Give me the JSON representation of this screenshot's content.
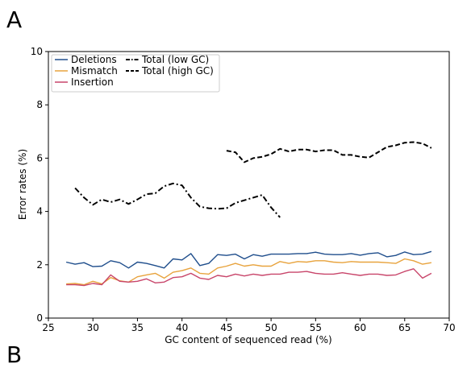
{
  "panel": {
    "label": "A",
    "next_label": "B"
  },
  "chart_data": {
    "type": "line",
    "title": "",
    "xlabel": "GC content of sequenced read (%)",
    "ylabel": "Error rates (%)",
    "xlim": [
      25,
      70
    ],
    "ylim": [
      0,
      10
    ],
    "xticks": [
      25,
      30,
      35,
      40,
      45,
      50,
      55,
      60,
      65,
      70
    ],
    "yticks": [
      0,
      2,
      4,
      6,
      8,
      10
    ],
    "grid": false,
    "legend_position": "top-left",
    "series": [
      {
        "name": "Deletions",
        "color": "#1f4e8c",
        "style": "solid",
        "x": [
          27,
          28,
          29,
          30,
          31,
          32,
          33,
          34,
          35,
          36,
          37,
          38,
          39,
          40,
          41,
          42,
          43,
          44,
          45,
          46,
          47,
          48,
          49,
          50,
          51,
          52,
          53,
          54,
          55,
          56,
          57,
          58,
          59,
          60,
          61,
          62,
          63,
          64,
          65,
          66,
          67,
          68
        ],
        "y": [
          2.1,
          2.02,
          2.08,
          1.93,
          1.95,
          2.15,
          2.08,
          1.88,
          2.1,
          2.05,
          1.97,
          1.88,
          2.22,
          2.18,
          2.42,
          1.97,
          2.05,
          2.38,
          2.35,
          2.4,
          2.22,
          2.38,
          2.32,
          2.4,
          2.4,
          2.4,
          2.42,
          2.42,
          2.47,
          2.4,
          2.38,
          2.38,
          2.42,
          2.36,
          2.42,
          2.45,
          2.3,
          2.35,
          2.48,
          2.38,
          2.4,
          2.5
        ]
      },
      {
        "name": "Mismatch",
        "color": "#e8a33d",
        "style": "solid",
        "x": [
          27,
          28,
          29,
          30,
          31,
          32,
          33,
          34,
          35,
          36,
          37,
          38,
          39,
          40,
          41,
          42,
          43,
          44,
          45,
          46,
          47,
          48,
          49,
          50,
          51,
          52,
          53,
          54,
          55,
          56,
          57,
          58,
          59,
          60,
          61,
          62,
          63,
          64,
          65,
          66,
          67,
          68
        ],
        "y": [
          1.28,
          1.3,
          1.25,
          1.38,
          1.28,
          1.52,
          1.4,
          1.35,
          1.55,
          1.62,
          1.68,
          1.5,
          1.72,
          1.78,
          1.88,
          1.68,
          1.65,
          1.88,
          1.95,
          2.05,
          1.95,
          2.0,
          1.95,
          1.95,
          2.12,
          2.05,
          2.12,
          2.1,
          2.15,
          2.15,
          2.1,
          2.08,
          2.12,
          2.1,
          2.1,
          2.1,
          2.08,
          2.05,
          2.22,
          2.15,
          2.02,
          2.08
        ]
      },
      {
        "name": "Insertion",
        "color": "#c8456a",
        "style": "solid",
        "x": [
          27,
          28,
          29,
          30,
          31,
          32,
          33,
          34,
          35,
          36,
          37,
          38,
          39,
          40,
          41,
          42,
          43,
          44,
          45,
          46,
          47,
          48,
          49,
          50,
          51,
          52,
          53,
          54,
          55,
          56,
          57,
          58,
          59,
          60,
          61,
          62,
          63,
          64,
          65,
          66,
          67,
          68
        ],
        "y": [
          1.25,
          1.25,
          1.22,
          1.3,
          1.25,
          1.62,
          1.38,
          1.35,
          1.38,
          1.47,
          1.32,
          1.35,
          1.52,
          1.55,
          1.68,
          1.5,
          1.45,
          1.6,
          1.55,
          1.65,
          1.58,
          1.65,
          1.6,
          1.65,
          1.65,
          1.72,
          1.72,
          1.75,
          1.68,
          1.65,
          1.65,
          1.7,
          1.65,
          1.6,
          1.65,
          1.65,
          1.6,
          1.62,
          1.75,
          1.85,
          1.5,
          1.68
        ]
      },
      {
        "name": "Total (low GC)",
        "color": "#000000",
        "style": "dashdot",
        "x": [
          28,
          29,
          30,
          31,
          32,
          33,
          34,
          35,
          36,
          37,
          38,
          39,
          40,
          41,
          42,
          43,
          44,
          45,
          46,
          47,
          48,
          49,
          50,
          51
        ],
        "y": [
          4.88,
          4.52,
          4.25,
          4.45,
          4.35,
          4.45,
          4.28,
          4.45,
          4.65,
          4.68,
          4.95,
          5.05,
          4.98,
          4.52,
          4.18,
          4.12,
          4.1,
          4.12,
          4.32,
          4.42,
          4.52,
          4.62,
          4.15,
          3.78
        ]
      },
      {
        "name": "Total (high GC)",
        "color": "#000000",
        "style": "dashed",
        "x": [
          45,
          46,
          47,
          48,
          49,
          50,
          51,
          52,
          53,
          54,
          55,
          56,
          57,
          58,
          59,
          60,
          61,
          62,
          63,
          64,
          65,
          66,
          67,
          68
        ],
        "y": [
          6.28,
          6.22,
          5.85,
          6.0,
          6.05,
          6.15,
          6.35,
          6.25,
          6.32,
          6.32,
          6.25,
          6.3,
          6.3,
          6.12,
          6.12,
          6.05,
          6.02,
          6.22,
          6.42,
          6.48,
          6.58,
          6.6,
          6.55,
          6.38
        ]
      }
    ]
  }
}
